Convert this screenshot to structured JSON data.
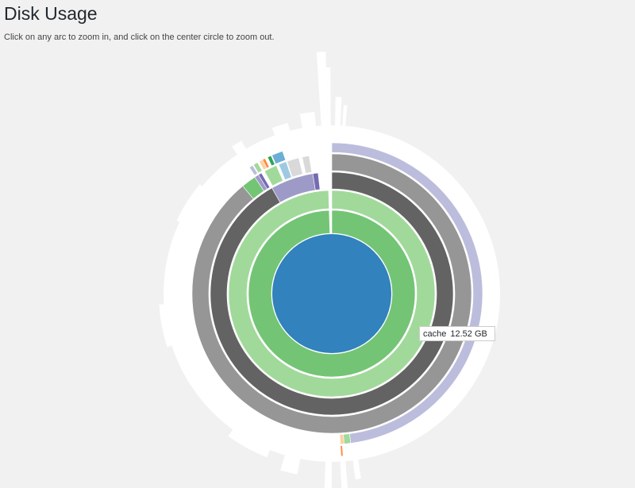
{
  "page": {
    "title": "Disk Usage",
    "instructions": "Click on any arc to zoom in, and click on the center circle to zoom out."
  },
  "tooltip": {
    "name": "cache",
    "size": "12.52 GB"
  },
  "chart_data": {
    "type": "sunburst",
    "title": "Disk Usage",
    "colors": {
      "root": "#3182bd",
      "green_dark": "#74c476",
      "green_light": "#a1d99b",
      "gray_dark": "#636363",
      "gray_mid": "#969696",
      "purple_light": "#bcbddc",
      "purple_mid": "#9e9ac8",
      "purple_dark": "#756bb1",
      "orange": "#fd8d3c",
      "orange_light": "#fdd0a2",
      "blue_light": "#6baed6",
      "blue_pale": "#9ecae1",
      "green_mid": "#31a354",
      "gray_light": "#d9d9d9",
      "background": "#f1f1f1",
      "white": "#ffffff"
    },
    "arcs": [
      {
        "name": "level1-main",
        "depth": 1,
        "start": 0.0,
        "end": 0.995,
        "color": "green_dark"
      },
      {
        "name": "level2-main",
        "depth": 2,
        "start": 0.0,
        "end": 0.995,
        "color": "green_light"
      },
      {
        "name": "level3-cache",
        "depth": 3,
        "start": 0.0,
        "end": 0.918,
        "color": "gray_dark"
      },
      {
        "name": "level3-purple",
        "depth": 3,
        "start": 0.918,
        "end": 0.975,
        "color": "purple_mid"
      },
      {
        "name": "level3-dark-purple",
        "depth": 3,
        "start": 0.975,
        "end": 0.982,
        "color": "purple_dark"
      },
      {
        "name": "level4-gray",
        "depth": 4,
        "start": 0.0,
        "end": 0.89,
        "color": "gray_mid"
      },
      {
        "name": "level4-green",
        "depth": 4,
        "start": 0.89,
        "end": 0.907,
        "color": "green_dark"
      },
      {
        "name": "level4-purple-small",
        "depth": 4,
        "start": 0.907,
        "end": 0.912,
        "color": "purple_mid"
      },
      {
        "name": "level4-purple-dark-small",
        "depth": 4,
        "start": 0.912,
        "end": 0.916,
        "color": "purple_dark"
      },
      {
        "name": "level4-green-light",
        "depth": 4,
        "start": 0.92,
        "end": 0.935,
        "color": "green_light"
      },
      {
        "name": "level4-blue-pale",
        "depth": 4,
        "start": 0.938,
        "end": 0.947,
        "color": "blue_pale"
      },
      {
        "name": "level4-gray-light",
        "depth": 4,
        "start": 0.948,
        "end": 0.962,
        "color": "gray_light"
      },
      {
        "name": "level4-gray-light-2",
        "depth": 4,
        "start": 0.966,
        "end": 0.974,
        "color": "gray_light"
      },
      {
        "name": "level5-lavender",
        "depth": 5,
        "start": 0.0,
        "end": 0.48,
        "color": "purple_light"
      },
      {
        "name": "level5-green-light",
        "depth": 5,
        "start": 0.48,
        "end": 0.487,
        "color": "green_light"
      },
      {
        "name": "level5-orange-light",
        "depth": 5,
        "start": 0.487,
        "end": 0.491,
        "color": "orange_light"
      },
      {
        "name": "level5-purple-light-2",
        "depth": 5,
        "start": 0.908,
        "end": 0.912,
        "color": "purple_light"
      },
      {
        "name": "level5-green-light-2",
        "depth": 5,
        "start": 0.913,
        "end": 0.918,
        "color": "green_light"
      },
      {
        "name": "level5-orange-light-2",
        "depth": 5,
        "start": 0.92,
        "end": 0.924,
        "color": "orange_light"
      },
      {
        "name": "level5-orange",
        "depth": 5,
        "start": 0.924,
        "end": 0.927,
        "color": "orange"
      },
      {
        "name": "level5-green-mid",
        "depth": 5,
        "start": 0.93,
        "end": 0.934,
        "color": "green_mid"
      },
      {
        "name": "level5-blue-light",
        "depth": 5,
        "start": 0.935,
        "end": 0.947,
        "color": "blue_light"
      },
      {
        "name": "level6-orange-small",
        "depth": 6,
        "start": 0.489,
        "end": 0.491,
        "color": "orange"
      }
    ]
  }
}
